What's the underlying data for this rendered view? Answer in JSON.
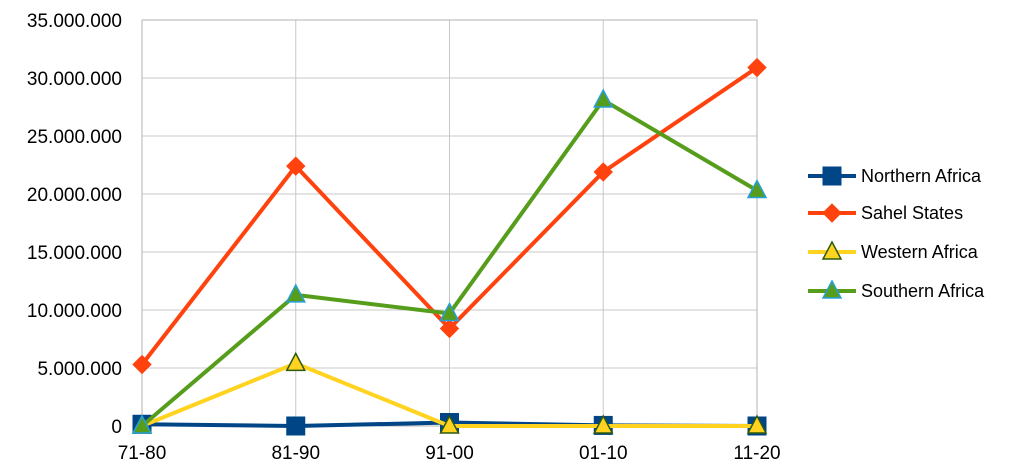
{
  "chart_data": {
    "type": "line",
    "title": "",
    "xlabel": "",
    "ylabel": "",
    "categories": [
      "71-80",
      "81-90",
      "91-00",
      "01-10",
      "11-20"
    ],
    "ylim": [
      0,
      35000000
    ],
    "y_ticks": [
      0,
      5000000,
      10000000,
      15000000,
      20000000,
      25000000,
      30000000,
      35000000
    ],
    "y_tick_labels": [
      "0",
      "5.000.000",
      "10.000.000",
      "15.000.000",
      "20.000.000",
      "25.000.000",
      "30.000.000",
      "35.000.000"
    ],
    "grid": true,
    "legend_position": "right",
    "series": [
      {
        "name": "Northern Africa",
        "values": [
          150000,
          0,
          300000,
          50000,
          0
        ],
        "color": "#004586",
        "marker": "square",
        "marker_fill": "#004586"
      },
      {
        "name": "Sahel States",
        "values": [
          5300000,
          22400000,
          8400000,
          21900000,
          30900000
        ],
        "color": "#ff420e",
        "marker": "diamond",
        "marker_fill": "#ff420e"
      },
      {
        "name": "Western Africa",
        "values": [
          0,
          5400000,
          0,
          0,
          0
        ],
        "color": "#ffd320",
        "marker": "triangle",
        "marker_fill": "#ffd320",
        "marker_stroke": "#2e5a0e"
      },
      {
        "name": "Southern Africa",
        "values": [
          0,
          11300000,
          9700000,
          28100000,
          20300000
        ],
        "color": "#579d1c",
        "marker": "triangle",
        "marker_fill": "#579d1c",
        "marker_stroke": "#26a0da"
      }
    ]
  }
}
